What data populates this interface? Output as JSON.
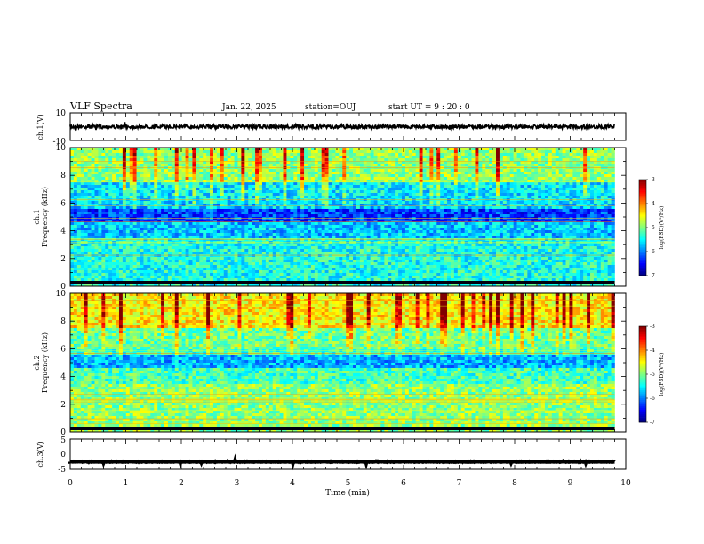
{
  "header": {
    "title": "VLF Spectra",
    "date": "Jan. 22, 2025",
    "station": "station=OUJ",
    "start": "start UT =  9 : 20 : 0"
  },
  "chart_data": [
    {
      "id": "ch1_waveform",
      "type": "line",
      "ylabel": "ch.1(V)",
      "ylim": [
        -10,
        10
      ],
      "yticks": [
        "10",
        "-10"
      ],
      "xlim": [
        0,
        10
      ],
      "baseline": 0,
      "data_end_min": 9.8,
      "color": "#000000"
    },
    {
      "id": "ch1_spectrogram",
      "type": "heatmap",
      "ylabel": "ch.1\nFrequency (kHz)",
      "ylim": [
        0,
        10
      ],
      "yticks": [
        "0",
        "2",
        "4",
        "6",
        "8",
        "10"
      ],
      "xlim": [
        0,
        10
      ],
      "data_end_min": 9.8,
      "colorbar": {
        "label": "log(PSD)(V²/Hz)",
        "range": [
          -7,
          -3
        ],
        "ticks": [
          "-3",
          "-4",
          "-5",
          "-6",
          "-7"
        ]
      }
    },
    {
      "id": "ch2_spectrogram",
      "type": "heatmap",
      "ylabel": "ch.2\nFrequency (kHz)",
      "ylim": [
        0,
        10
      ],
      "yticks": [
        "0",
        "2",
        "4",
        "6",
        "8",
        "10"
      ],
      "xlim": [
        0,
        10
      ],
      "data_end_min": 9.8,
      "colorbar": {
        "label": "log(PSD)(V²/Hz)",
        "range": [
          -7,
          -3
        ],
        "ticks": [
          "-3",
          "-4",
          "-5",
          "-6",
          "-7"
        ]
      }
    },
    {
      "id": "ch3_waveform",
      "type": "line",
      "ylabel": "ch.3(V)",
      "ylim": [
        -5,
        5
      ],
      "yticks": [
        "5",
        "0",
        "-5"
      ],
      "xlim": [
        0,
        10
      ],
      "baseline": -2.5,
      "data_end_min": 9.8,
      "color": "#000000"
    }
  ],
  "xaxis": {
    "label": "Time (min)",
    "ticks": [
      "0",
      "1",
      "2",
      "3",
      "4",
      "5",
      "6",
      "7",
      "8",
      "9",
      "10"
    ]
  }
}
